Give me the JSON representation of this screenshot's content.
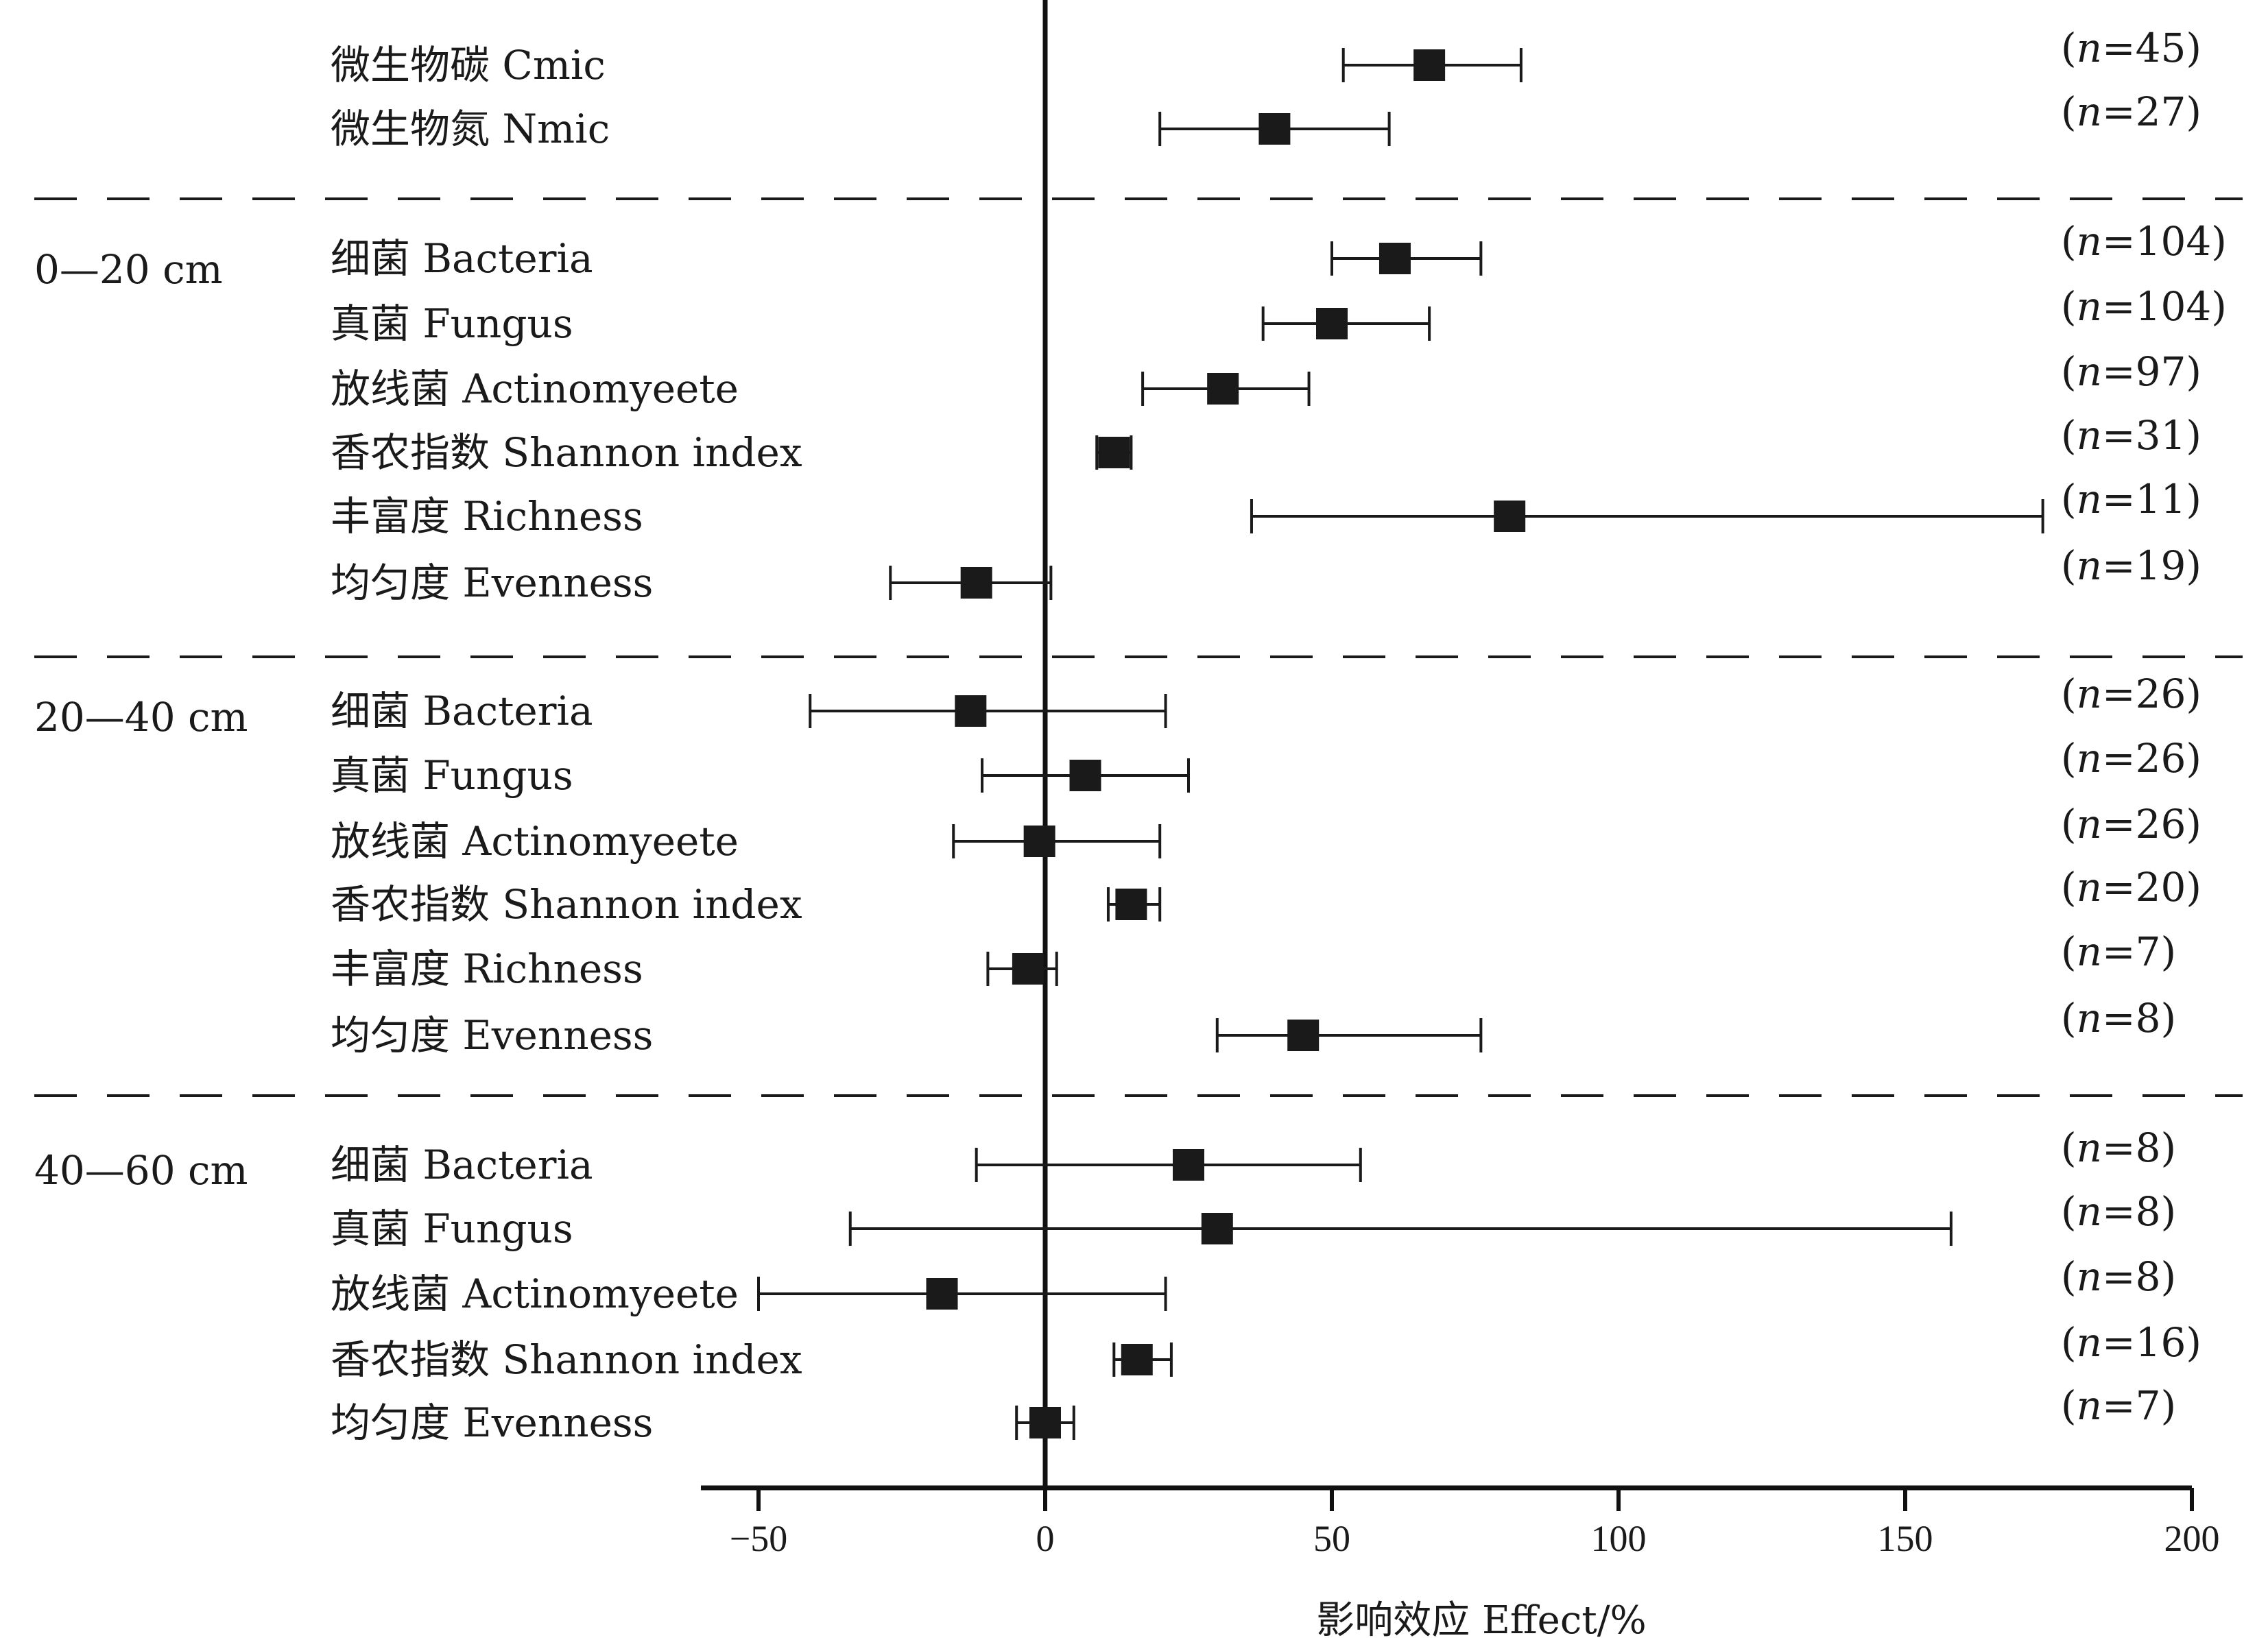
{
  "chart_data": {
    "type": "forest",
    "xlabel": "影响效应  Effect/%",
    "xlim": [
      -60,
      200
    ],
    "xticks": [
      -50,
      0,
      50,
      100,
      150,
      200
    ],
    "xtick_labels": [
      "−50",
      "0",
      "50",
      "100",
      "150",
      "200"
    ],
    "reference_line": 0,
    "groups": [
      {
        "label": "",
        "rows": [
          {
            "label": "微生物碳  Cmic",
            "n": "(n=45)",
            "mean": 67,
            "lo": 52,
            "hi": 83
          },
          {
            "label": "微生物氮  Nmic",
            "n": "(n=27)",
            "mean": 40,
            "lo": 20,
            "hi": 60
          }
        ]
      },
      {
        "label": "0—20 cm",
        "rows": [
          {
            "label": "细菌  Bacteria",
            "n": "(n=104)",
            "mean": 61,
            "lo": 50,
            "hi": 76
          },
          {
            "label": "真菌  Fungus",
            "n": "(n=104)",
            "mean": 50,
            "lo": 38,
            "hi": 67
          },
          {
            "label": "放线菌  Actinomyeete",
            "n": "(n=97)",
            "mean": 31,
            "lo": 17,
            "hi": 46
          },
          {
            "label": "香农指数  Shannon index",
            "n": "(n=31)",
            "mean": 12,
            "lo": 9,
            "hi": 15
          },
          {
            "label": "丰富度  Richness",
            "n": "(n=11)",
            "mean": 81,
            "lo": 36,
            "hi": 174
          },
          {
            "label": "均匀度  Evenness",
            "n": "(n=19)",
            "mean": -12,
            "lo": -27,
            "hi": 1
          }
        ]
      },
      {
        "label": "20—40 cm",
        "rows": [
          {
            "label": "细菌  Bacteria",
            "n": "(n=26)",
            "mean": -13,
            "lo": -41,
            "hi": 21
          },
          {
            "label": "真菌  Fungus",
            "n": "(n=26)",
            "mean": 7,
            "lo": -11,
            "hi": 25
          },
          {
            "label": "放线菌  Actinomyeete",
            "n": "(n=26)",
            "mean": -1,
            "lo": -16,
            "hi": 20
          },
          {
            "label": "香农指数  Shannon index",
            "n": "(n=20)",
            "mean": 15,
            "lo": 11,
            "hi": 20
          },
          {
            "label": "丰富度  Richness",
            "n": "(n=7)",
            "mean": -3,
            "lo": -10,
            "hi": 2
          },
          {
            "label": "均匀度  Evenness",
            "n": "(n=8)",
            "mean": 45,
            "lo": 30,
            "hi": 76
          }
        ]
      },
      {
        "label": "40—60 cm",
        "rows": [
          {
            "label": "细菌  Bacteria",
            "n": "(n=8)",
            "mean": 25,
            "lo": -12,
            "hi": 55
          },
          {
            "label": "真菌  Fungus",
            "n": "(n=8)",
            "mean": 30,
            "lo": -34,
            "hi": 158
          },
          {
            "label": "放线菌  Actinomyeete",
            "n": "(n=8)",
            "mean": -18,
            "lo": -50,
            "hi": 21
          },
          {
            "label": "香农指数  Shannon index",
            "n": "(n=16)",
            "mean": 16,
            "lo": 12,
            "hi": 22
          },
          {
            "label": "均匀度  Evenness",
            "n": "(n=7)",
            "mean": 0,
            "lo": -5,
            "hi": 5
          }
        ]
      }
    ]
  }
}
